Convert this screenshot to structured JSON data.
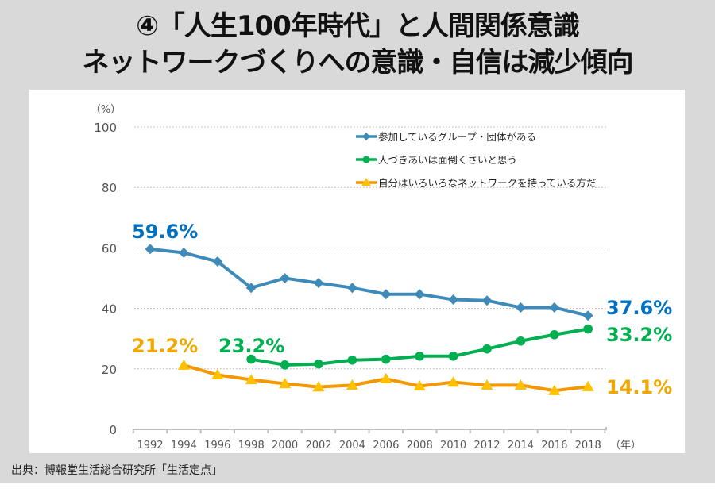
{
  "page": {
    "title_line1": "④「人生100年時代」と人間関係意識",
    "title_line2": "ネットワークづくりへの意識・自信は減少傾向",
    "source": "出典：博報堂生活総合研究所「生活定点」"
  },
  "chart_data": {
    "type": "line",
    "title": "④「人生100年時代」と人間関係意識 ネットワークづくりへの意識・自信は減少傾向",
    "xlabel": "（年）",
    "ylabel": "（%）",
    "ylim": [
      0,
      100
    ],
    "yticks": [
      0,
      20,
      40,
      60,
      80,
      100
    ],
    "grid": true,
    "legend_position": "top-right",
    "x": [
      1992,
      1994,
      1996,
      1998,
      2000,
      2002,
      2004,
      2006,
      2008,
      2010,
      2012,
      2014,
      2016,
      2018
    ],
    "series": [
      {
        "name": "参加しているグループ・団体がある",
        "color": "#3e8bba",
        "label_color": "#0070c0",
        "marker": "diamond",
        "values": [
          59.6,
          58.4,
          55.5,
          46.8,
          50.0,
          48.4,
          46.8,
          44.7,
          44.7,
          42.9,
          42.6,
          40.3,
          40.3,
          37.6
        ],
        "annotations": [
          {
            "x": 1992,
            "text": "59.6%"
          },
          {
            "x": 2018,
            "text": "37.6%"
          }
        ]
      },
      {
        "name": "人づきあいは面倒くさいと思う",
        "color": "#00b050",
        "label_color": "#00b050",
        "marker": "circle",
        "values": [
          null,
          null,
          null,
          23.2,
          21.3,
          21.6,
          22.9,
          23.2,
          24.2,
          24.2,
          26.6,
          29.2,
          31.3,
          33.2
        ],
        "annotations": [
          {
            "x": 1998,
            "text": "23.2%"
          },
          {
            "x": 2018,
            "text": "33.2%"
          }
        ]
      },
      {
        "name": "自分はいろいろなネットワークを持っている方だ",
        "color": "#f39800",
        "marker_color": "#ffc000",
        "label_color": "#f0a800",
        "marker": "triangle",
        "values": [
          null,
          21.2,
          18.0,
          16.4,
          15.1,
          14.0,
          14.6,
          16.7,
          14.3,
          15.6,
          14.6,
          14.6,
          12.8,
          14.1
        ],
        "annotations": [
          {
            "x": 1994,
            "text": "21.2%"
          },
          {
            "x": 2018,
            "text": "14.1%"
          }
        ]
      }
    ]
  }
}
